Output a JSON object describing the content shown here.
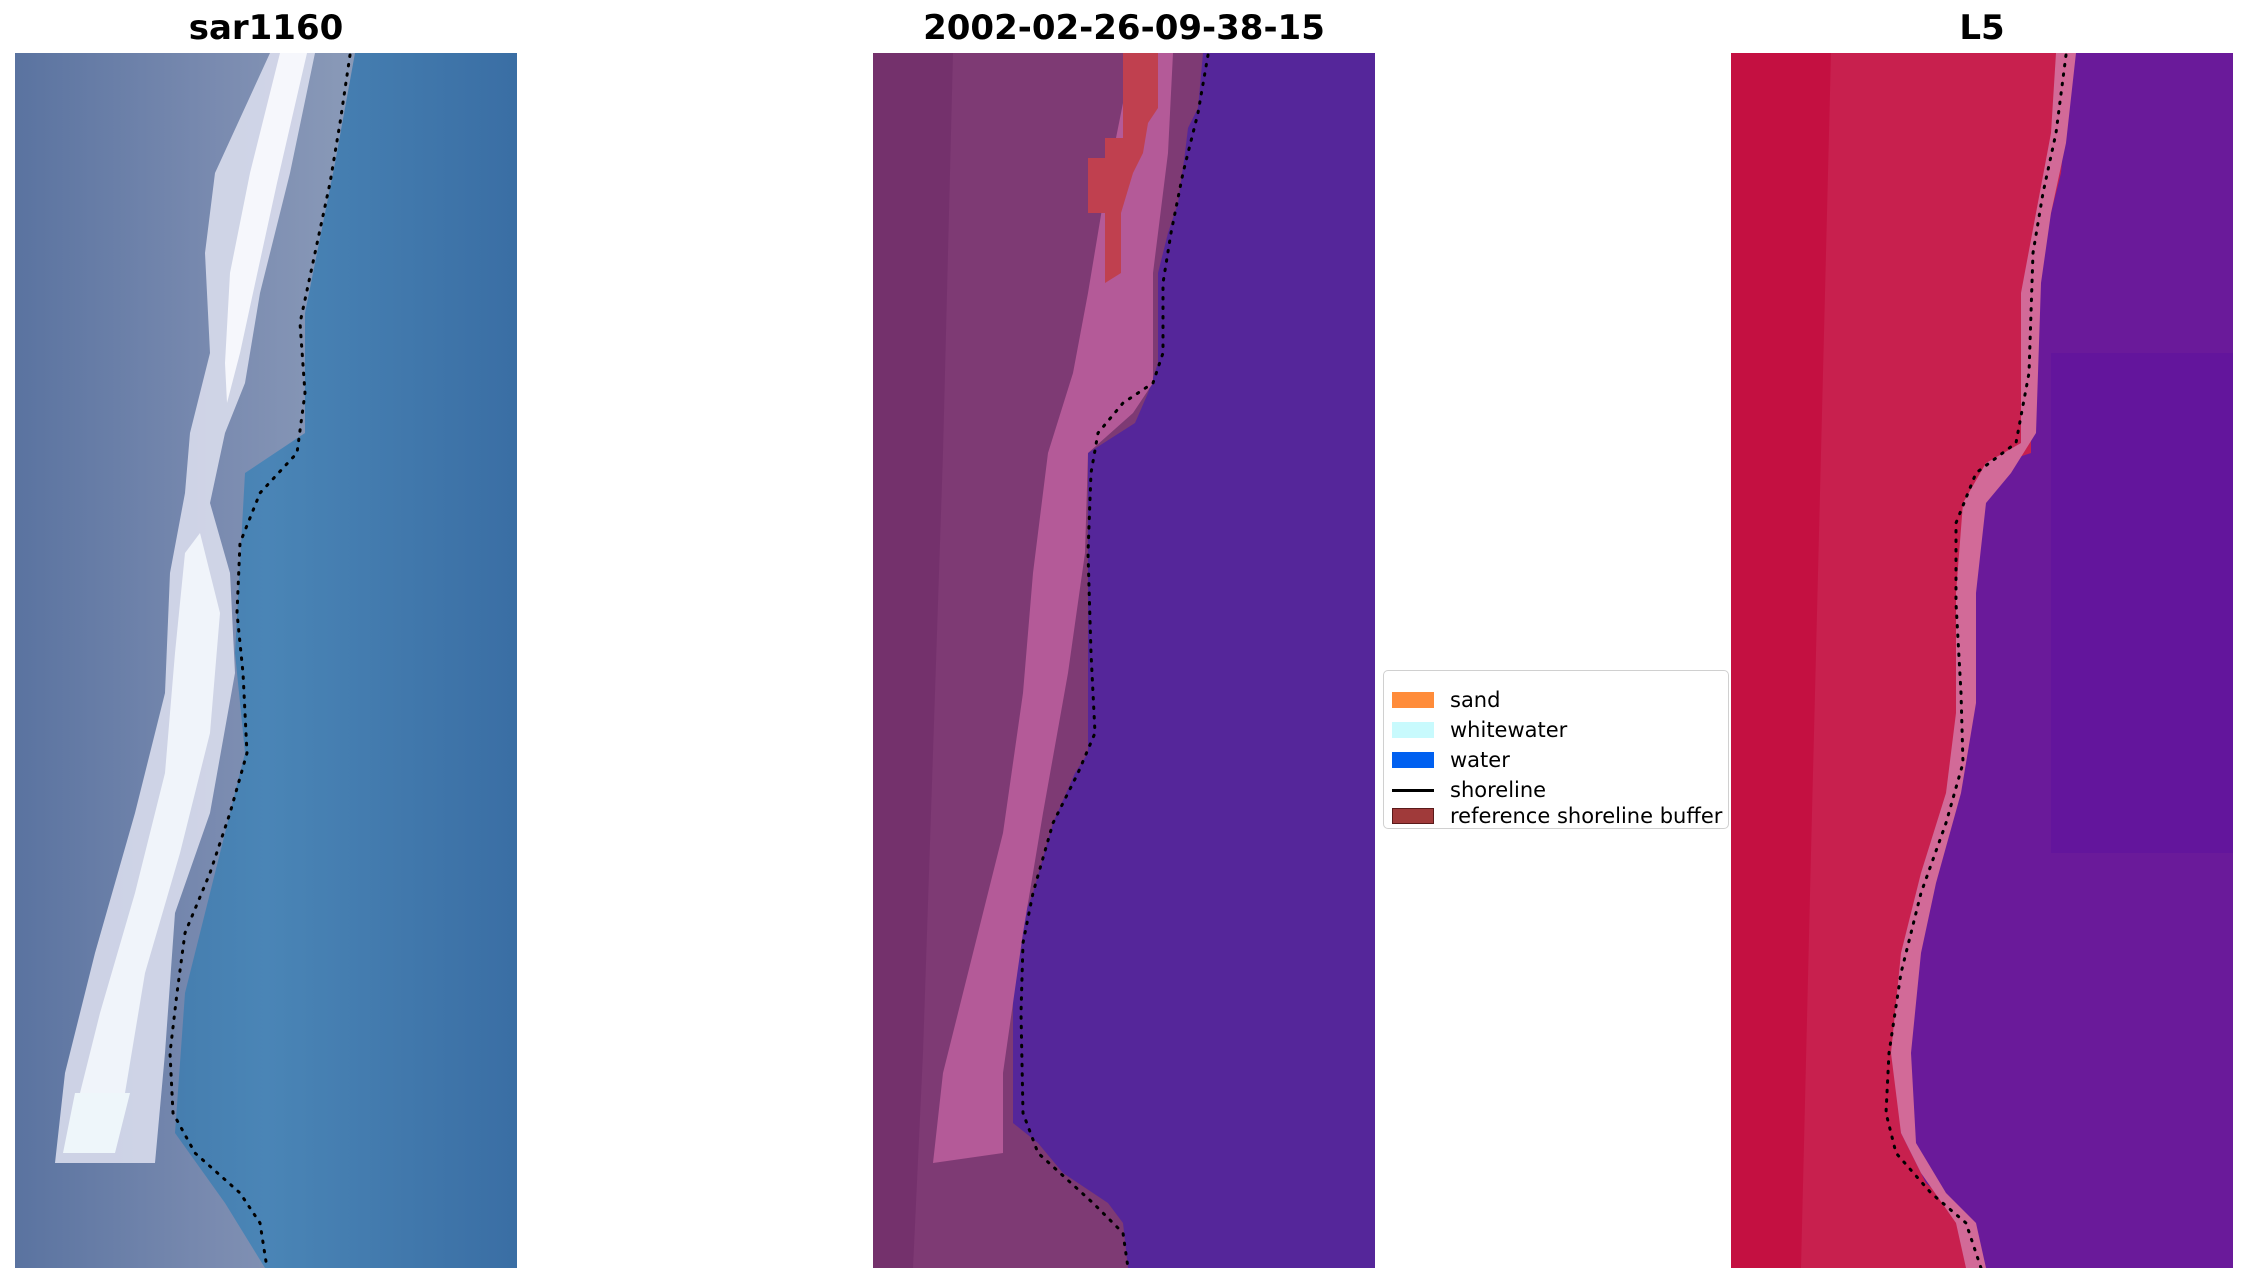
{
  "panels": {
    "left": {
      "title": "sar1160",
      "palette": {
        "water": "#3a6fa6",
        "water_light": "#4e88b6",
        "land": "#6f80a6",
        "whitewater": "#f2f4fa"
      }
    },
    "middle": {
      "title": "2002-02-26-09-38-15",
      "palette": {
        "land_dark": "#72306a",
        "land": "#7e3a74",
        "beach": "#b45a98",
        "buffer": "#c0404f",
        "water": "#55269a"
      }
    },
    "right": {
      "title": "L5",
      "palette": {
        "land_dark": "#c20a3c",
        "land": "#c8204e",
        "beach": "#d26a98",
        "water": "#6a1a9a",
        "water_dark": "#5a10a0"
      }
    }
  },
  "legend": {
    "entries": [
      {
        "label": "sand",
        "color": "#ff8c3a",
        "kind": "patch"
      },
      {
        "label": "whitewater",
        "color": "#c8fafd",
        "kind": "patch"
      },
      {
        "label": "water",
        "color": "#0060f0",
        "kind": "patch"
      },
      {
        "label": "shoreline",
        "color": "#000000",
        "kind": "line"
      },
      {
        "label": "reference shoreline buffer",
        "color": "#a03a3a",
        "kind": "patch"
      }
    ]
  }
}
